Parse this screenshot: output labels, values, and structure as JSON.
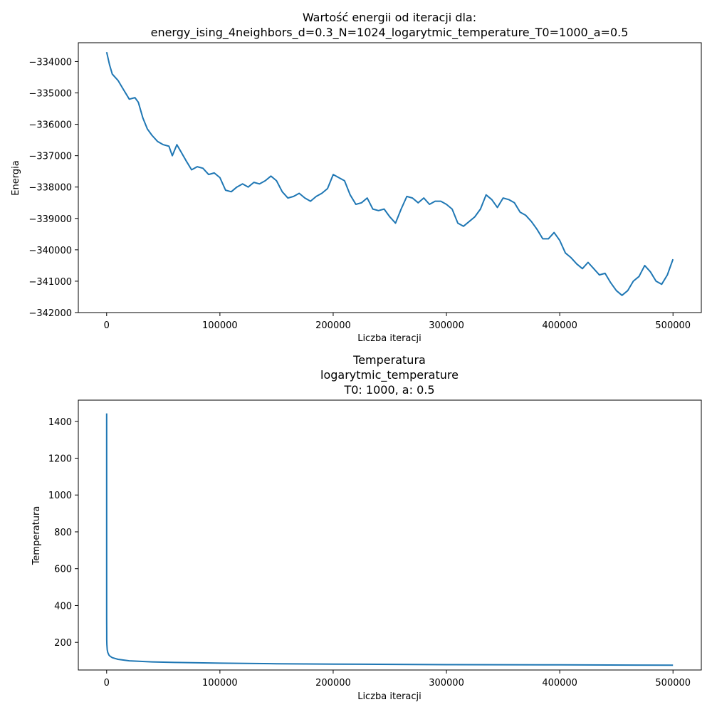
{
  "chart_data": [
    {
      "type": "line",
      "title_lines": [
        "Wartość energii od iteracji dla:",
        "energy_ising_4neighbors_d=0.3_N=1024_logarytmic_temperature_T0=1000_a=0.5"
      ],
      "xlabel": "Liczba iteracji",
      "ylabel": "Energia",
      "xlim": [
        -25000,
        525000
      ],
      "ylim": [
        -342000,
        -333400
      ],
      "xticks": [
        0,
        100000,
        200000,
        300000,
        400000,
        500000
      ],
      "xtick_labels": [
        "0",
        "100000",
        "200000",
        "300000",
        "400000",
        "500000"
      ],
      "yticks": [
        -334000,
        -335000,
        -336000,
        -337000,
        -338000,
        -339000,
        -340000,
        -341000,
        -342000
      ],
      "ytick_labels": [
        "−334000",
        "−335000",
        "−336000",
        "−337000",
        "−338000",
        "−339000",
        "−340000",
        "−341000",
        "−342000"
      ],
      "color": "#1f77b4",
      "grid": false,
      "x": [
        0,
        2500,
        5000,
        10000,
        15000,
        20000,
        25000,
        28000,
        32000,
        36000,
        40000,
        45000,
        50000,
        55000,
        58000,
        62000,
        66000,
        70000,
        75000,
        80000,
        85000,
        90000,
        95000,
        100000,
        105000,
        110000,
        115000,
        120000,
        125000,
        130000,
        135000,
        140000,
        145000,
        150000,
        155000,
        160000,
        165000,
        170000,
        175000,
        180000,
        185000,
        190000,
        195000,
        200000,
        205000,
        210000,
        215000,
        220000,
        225000,
        230000,
        235000,
        240000,
        245000,
        250000,
        255000,
        260000,
        265000,
        270000,
        275000,
        280000,
        285000,
        290000,
        295000,
        300000,
        305000,
        310000,
        315000,
        320000,
        325000,
        330000,
        335000,
        340000,
        345000,
        350000,
        355000,
        360000,
        365000,
        370000,
        375000,
        380000,
        385000,
        390000,
        395000,
        400000,
        405000,
        410000,
        415000,
        420000,
        425000,
        430000,
        435000,
        440000,
        445000,
        450000,
        455000,
        460000,
        465000,
        470000,
        475000,
        480000,
        485000,
        490000,
        495000,
        500000
      ],
      "y": [
        -333700,
        -334100,
        -334400,
        -334600,
        -334900,
        -335200,
        -335150,
        -335300,
        -335800,
        -336150,
        -336350,
        -336550,
        -336650,
        -336700,
        -337000,
        -336650,
        -336900,
        -337150,
        -337450,
        -337350,
        -337400,
        -337600,
        -337550,
        -337700,
        -338100,
        -338150,
        -338000,
        -337900,
        -338000,
        -337850,
        -337900,
        -337800,
        -337650,
        -337800,
        -338150,
        -338350,
        -338300,
        -338200,
        -338350,
        -338450,
        -338300,
        -338200,
        -338050,
        -337600,
        -337700,
        -337800,
        -338250,
        -338550,
        -338500,
        -338350,
        -338700,
        -338750,
        -338700,
        -338950,
        -339150,
        -338700,
        -338300,
        -338350,
        -338500,
        -338350,
        -338550,
        -338450,
        -338450,
        -338550,
        -338700,
        -339150,
        -339250,
        -339100,
        -338950,
        -338700,
        -338250,
        -338400,
        -338650,
        -338350,
        -338400,
        -338500,
        -338800,
        -338900,
        -339100,
        -339350,
        -339650,
        -339650,
        -339450,
        -339700,
        -340100,
        -340250,
        -340450,
        -340600,
        -340400,
        -340600,
        -340800,
        -340750,
        -341050,
        -341300,
        -341450,
        -341300,
        -341000,
        -340850,
        -340500,
        -340700,
        -341000,
        -341100,
        -340800,
        -340300
      ]
    },
    {
      "type": "line",
      "title_lines": [
        "Temperatura",
        "logarytmic_temperature",
        "T0: 1000, a: 0.5"
      ],
      "xlabel": "Liczba iteracji",
      "ylabel": "Temperatura",
      "xlim": [
        -25000,
        525000
      ],
      "ylim": [
        50,
        1515
      ],
      "xticks": [
        0,
        100000,
        200000,
        300000,
        400000,
        500000
      ],
      "xtick_labels": [
        "0",
        "100000",
        "200000",
        "300000",
        "400000",
        "500000"
      ],
      "yticks": [
        200,
        400,
        600,
        800,
        1000,
        1200,
        1400
      ],
      "ytick_labels": [
        "200",
        "400",
        "600",
        "800",
        "1000",
        "1200",
        "1400"
      ],
      "color": "#1f77b4",
      "grid": false,
      "x": [
        0,
        20,
        50,
        100,
        200,
        500,
        1000,
        2000,
        3000,
        5000,
        10000,
        20000,
        40000,
        60000,
        100000,
        150000,
        200000,
        300000,
        400000,
        500000
      ],
      "y": [
        1443,
        333,
        254,
        216,
        188,
        160,
        145,
        131,
        125,
        117,
        108,
        100,
        94,
        91,
        87,
        84,
        82,
        79,
        78,
        76
      ]
    }
  ]
}
